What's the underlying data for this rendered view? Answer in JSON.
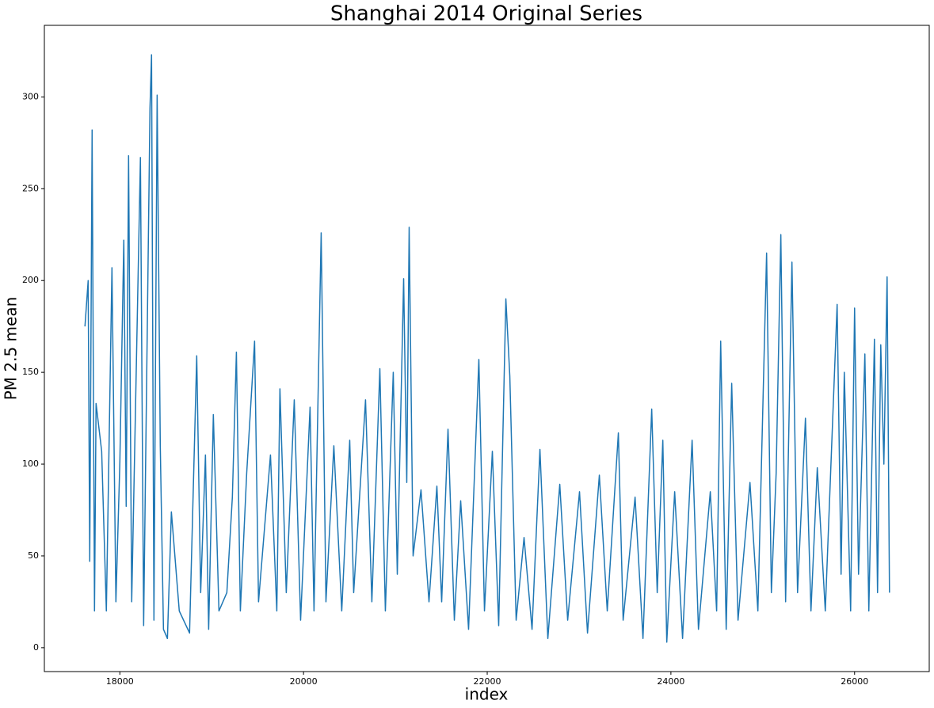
{
  "chart_data": {
    "type": "line",
    "title": "Shanghai 2014 Original Series",
    "x_label": "index",
    "y_label": "PM 2.5 mean",
    "color": "#1f77b4",
    "grid": false,
    "xlim": [
      17178,
      26813
    ],
    "xticks": [
      18000,
      20000,
      22000,
      24000,
      26000
    ],
    "ylim": [
      -13,
      339
    ],
    "yticks": [
      0,
      50,
      100,
      150,
      200,
      250,
      300
    ],
    "x": [
      17620,
      17655,
      17672,
      17698,
      17724,
      17741,
      17802,
      17853,
      17914,
      17957,
      18000,
      18043,
      18069,
      18095,
      18129,
      18224,
      18259,
      18328,
      18345,
      18371,
      18406,
      18440,
      18475,
      18518,
      18561,
      18647,
      18759,
      18837,
      18880,
      18932,
      18967,
      19018,
      19079,
      19165,
      19225,
      19269,
      19312,
      19381,
      19467,
      19510,
      19640,
      19709,
      19743,
      19812,
      19899,
      19968,
      20071,
      20114,
      20192,
      20244,
      20330,
      20416,
      20503,
      20546,
      20675,
      20744,
      20831,
      20891,
      20977,
      21021,
      21090,
      21124,
      21150,
      21193,
      21279,
      21366,
      21452,
      21504,
      21573,
      21642,
      21711,
      21797,
      21909,
      21970,
      22056,
      22125,
      22203,
      22246,
      22315,
      22401,
      22488,
      22574,
      22660,
      22790,
      22876,
      23005,
      23092,
      23221,
      23307,
      23428,
      23480,
      23610,
      23696,
      23791,
      23851,
      23912,
      23955,
      24041,
      24127,
      24231,
      24300,
      24429,
      24498,
      24542,
      24602,
      24662,
      24731,
      24861,
      24947,
      25042,
      25094,
      25146,
      25197,
      25249,
      25318,
      25379,
      25465,
      25525,
      25594,
      25681,
      25810,
      25853,
      25888,
      25957,
      26000,
      26043,
      26112,
      26155,
      26216,
      26250,
      26285,
      26319,
      26354,
      26380
    ],
    "values": [
      175,
      200,
      47,
      282,
      20,
      133,
      107,
      20,
      207,
      25,
      101,
      222,
      77,
      268,
      25,
      267,
      12,
      294,
      323,
      15,
      301,
      110,
      10,
      5,
      74,
      20,
      8,
      159,
      30,
      105,
      10,
      127,
      20,
      30,
      82,
      161,
      20,
      95,
      167,
      25,
      105,
      20,
      141,
      30,
      135,
      15,
      131,
      20,
      226,
      25,
      110,
      20,
      113,
      30,
      135,
      25,
      152,
      20,
      150,
      40,
      201,
      90,
      229,
      50,
      86,
      25,
      88,
      25,
      119,
      15,
      80,
      10,
      157,
      20,
      107,
      12,
      190,
      148,
      15,
      60,
      10,
      108,
      5,
      89,
      15,
      85,
      8,
      94,
      20,
      117,
      15,
      82,
      5,
      130,
      30,
      113,
      3,
      85,
      5,
      113,
      10,
      85,
      20,
      167,
      10,
      144,
      15,
      90,
      20,
      215,
      30,
      95,
      225,
      25,
      210,
      30,
      125,
      20,
      98,
      20,
      187,
      40,
      150,
      20,
      185,
      40,
      160,
      20,
      168,
      30,
      165,
      100,
      202,
      30
    ]
  }
}
